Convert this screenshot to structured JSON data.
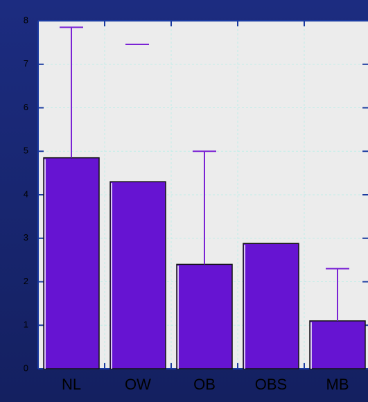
{
  "chart_data": {
    "type": "bar",
    "categories": [
      "NL",
      "OW",
      "OB",
      "OBS",
      "MB"
    ],
    "values": [
      4.85,
      4.3,
      2.4,
      2.88,
      1.1
    ],
    "errors": [
      3.0,
      null,
      2.6,
      null,
      1.2
    ],
    "color": "#6614d2",
    "error_color": "#7a22d4",
    "ylim": [
      0,
      8
    ],
    "yticks": [
      0,
      1,
      2,
      3,
      4,
      5,
      6,
      7,
      8
    ],
    "grid": true
  }
}
